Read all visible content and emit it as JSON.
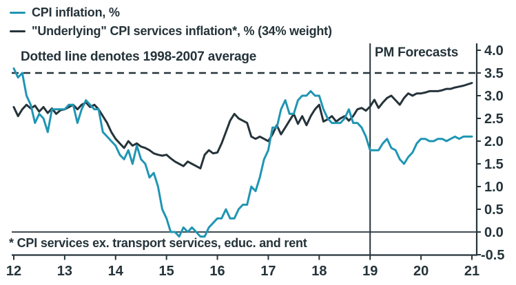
{
  "legend": {
    "items": [
      {
        "name": "cpi-inflation",
        "label": "CPI inflation, %",
        "color": "#1f95b3"
      },
      {
        "name": "underlying-cpi-services",
        "label": "\"Underlying\" CPI services inflation*, % (34% weight)",
        "color": "#25333a"
      }
    ]
  },
  "annotations": {
    "dotted_line_note": "Dotted line denotes 1998-2007 average",
    "forecast_label": "PM Forecasts",
    "footnote": "* CPI services ex. transport services, educ. and rent"
  },
  "colors": {
    "cpi_line": "#1f95b3",
    "underlying_line": "#25333a",
    "axis_and_text": "#25333a",
    "background": "#ffffff"
  },
  "chart_data": {
    "type": "line",
    "title": "",
    "xlabel": "",
    "ylabel": "",
    "xlim": [
      12,
      21
    ],
    "ylim": [
      -0.5,
      4.0
    ],
    "grid": false,
    "legend_position": "top-left",
    "x_tick_labels": [
      "12",
      "13",
      "14",
      "15",
      "16",
      "17",
      "18",
      "19",
      "20",
      "21"
    ],
    "x_tick_years": [
      12,
      13,
      14,
      15,
      16,
      17,
      18,
      19,
      20,
      21
    ],
    "y_tick_labels": [
      "4.0",
      "3.5",
      "3.0",
      "2.5",
      "2.0",
      "1.5",
      "1.0",
      "0.5",
      "0.0",
      "-0.5"
    ],
    "y_tick_values": [
      4.0,
      3.5,
      3.0,
      2.5,
      2.0,
      1.5,
      1.0,
      0.5,
      0.0,
      -0.5
    ],
    "reference_lines": {
      "dashed_average": {
        "value": 3.5,
        "style": "dashed",
        "meaning": "1998-2007 average"
      },
      "zero_line": {
        "value": 0.0,
        "style": "solid"
      },
      "forecast_divider": {
        "x_year": 19,
        "style": "solid-vertical",
        "meaning": "PM Forecasts begin"
      }
    },
    "x_is_monthly_from_year": 12,
    "forecast_start_index": 84,
    "series": [
      {
        "name": "CPI inflation, %",
        "color": "#1f95b3",
        "monthly_values": [
          3.6,
          3.4,
          3.5,
          3.0,
          2.8,
          2.4,
          2.6,
          2.5,
          2.2,
          2.7,
          2.7,
          2.7,
          2.7,
          2.8,
          2.8,
          2.4,
          2.7,
          2.9,
          2.8,
          2.7,
          2.7,
          2.2,
          2.1,
          2.0,
          1.9,
          1.7,
          1.6,
          1.8,
          1.5,
          1.9,
          1.6,
          1.5,
          1.2,
          1.3,
          1.0,
          0.5,
          0.3,
          0.0,
          0.0,
          -0.1,
          0.1,
          0.0,
          0.1,
          0.0,
          -0.1,
          -0.1,
          0.1,
          0.2,
          0.3,
          0.3,
          0.5,
          0.3,
          0.3,
          0.5,
          0.6,
          0.6,
          1.0,
          0.9,
          1.2,
          1.6,
          1.8,
          2.3,
          2.3,
          2.7,
          2.9,
          2.6,
          2.6,
          2.9,
          3.0,
          3.0,
          3.1,
          3.0,
          3.0,
          2.7,
          2.5,
          2.4,
          2.4,
          2.4,
          2.5,
          2.7,
          2.4,
          2.4,
          2.3,
          2.1,
          1.8,
          1.8,
          1.8,
          1.95,
          2.05,
          1.85,
          1.8,
          1.6,
          1.5,
          1.65,
          1.75,
          1.95,
          2.05,
          2.05,
          2.0,
          2.0,
          2.05,
          2.05,
          2.0,
          2.05,
          2.1,
          2.05,
          2.1,
          2.1,
          2.1
        ]
      },
      {
        "name": "\"Underlying\" CPI services inflation*, % (34% weight)",
        "color": "#25333a",
        "monthly_values": [
          2.75,
          2.55,
          2.7,
          2.8,
          2.72,
          2.78,
          2.65,
          2.75,
          2.62,
          2.72,
          2.6,
          2.68,
          2.7,
          2.75,
          2.8,
          2.7,
          2.8,
          2.85,
          2.75,
          2.8,
          2.7,
          2.55,
          2.4,
          2.2,
          2.05,
          1.95,
          1.85,
          2.0,
          1.9,
          1.95,
          1.88,
          1.85,
          1.8,
          1.73,
          1.7,
          1.68,
          1.7,
          1.62,
          1.55,
          1.5,
          1.45,
          1.55,
          1.5,
          1.45,
          1.4,
          1.7,
          1.8,
          1.73,
          1.75,
          1.95,
          2.2,
          2.45,
          2.6,
          2.5,
          2.45,
          2.4,
          2.1,
          2.05,
          2.1,
          2.05,
          2.0,
          2.15,
          2.35,
          2.15,
          2.3,
          2.45,
          2.6,
          2.38,
          2.55,
          2.35,
          2.55,
          2.7,
          2.8,
          2.43,
          2.48,
          2.55,
          2.43,
          2.5,
          2.55,
          2.45,
          2.55,
          2.7,
          2.73,
          2.67,
          2.76,
          2.91,
          2.73,
          2.85,
          2.95,
          3.0,
          2.9,
          2.8,
          2.95,
          3.05,
          3.0,
          3.05,
          3.05,
          3.07,
          3.1,
          3.1,
          3.1,
          3.12,
          3.15,
          3.15,
          3.18,
          3.2,
          3.22,
          3.25,
          3.28
        ]
      }
    ]
  }
}
